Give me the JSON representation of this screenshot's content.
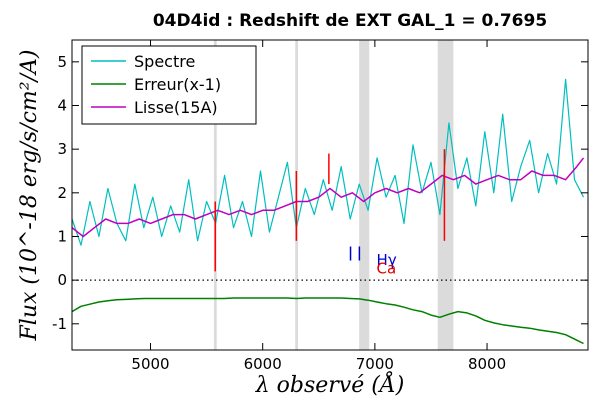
{
  "chart_data": {
    "type": "line",
    "title": "04D4id : Redshift de EXT GAL_1 = 0.7695",
    "xlabel": "λ observé (Å)",
    "ylabel": "Flux (10^-18 erg/s/cm²/A)",
    "xlim": [
      4300,
      8900
    ],
    "ylim": [
      -1.6,
      5.5
    ],
    "xticks": [
      {
        "value": 5000,
        "label": "5000"
      },
      {
        "value": 6000,
        "label": "6000"
      },
      {
        "value": 7000,
        "label": "7000"
      },
      {
        "value": 8000,
        "label": "8000"
      }
    ],
    "yticks": [
      {
        "value": 5,
        "label": "5"
      },
      {
        "value": 4,
        "label": "4"
      },
      {
        "value": 3,
        "label": "3"
      },
      {
        "value": 2,
        "label": "2"
      },
      {
        "value": 1,
        "label": "1"
      },
      {
        "value": 0,
        "label": "0"
      },
      {
        "value": -1,
        "label": "-1"
      }
    ],
    "legend": {
      "placement": "top-left",
      "entries": [
        {
          "label": "Spectre",
          "color": "#00bfbf"
        },
        {
          "label": "Erreur(x-1)",
          "color": "#008000"
        },
        {
          "label": "Lisse(15A)",
          "color": "#bf00bf"
        }
      ]
    },
    "zero_line": {
      "y": 0,
      "style": "dotted"
    },
    "shaded_bands": [
      {
        "x0": 5565,
        "x1": 5590,
        "color": "#cccccc"
      },
      {
        "x0": 6290,
        "x1": 6315,
        "color": "#cccccc"
      },
      {
        "x0": 6860,
        "x1": 6950,
        "color": "#cccccc"
      },
      {
        "x0": 7560,
        "x1": 7700,
        "color": "#cccccc"
      }
    ],
    "red_marks": [
      {
        "x": 5577,
        "y0": 0.2,
        "y1": 1.8
      },
      {
        "x": 6300,
        "y0": 0.9,
        "y1": 2.5
      },
      {
        "x": 7620,
        "y0": 0.9,
        "y1": 3.0
      },
      {
        "x": 6590,
        "y0": 2.2,
        "y1": 2.9
      }
    ],
    "line_markers": [
      {
        "x": 6783,
        "y": 0.45,
        "color": "#0000cc"
      },
      {
        "x": 6862,
        "y": 0.45,
        "color": "#0000cc"
      }
    ],
    "line_labels": [
      {
        "text": "Hγ",
        "x": 7015,
        "y": 0.35,
        "color": "#0000cc"
      },
      {
        "text": "Ca",
        "x": 7015,
        "y": 0.15,
        "color": "#dd0000"
      }
    ],
    "series": [
      {
        "name": "Spectre",
        "color": "#00bfbf",
        "x": [
          4300,
          4380,
          4460,
          4540,
          4620,
          4700,
          4780,
          4860,
          4940,
          5020,
          5100,
          5180,
          5260,
          5340,
          5420,
          5500,
          5580,
          5660,
          5740,
          5820,
          5900,
          5980,
          6060,
          6140,
          6220,
          6300,
          6380,
          6460,
          6540,
          6620,
          6700,
          6780,
          6860,
          6940,
          7020,
          7100,
          7180,
          7260,
          7340,
          7420,
          7500,
          7580,
          7660,
          7740,
          7820,
          7900,
          7980,
          8060,
          8140,
          8220,
          8300,
          8380,
          8460,
          8540,
          8620,
          8700,
          8780,
          8860
        ],
        "y": [
          1.4,
          0.8,
          1.8,
          1.0,
          2.1,
          1.3,
          0.9,
          2.2,
          1.2,
          1.9,
          1.0,
          1.7,
          1.1,
          2.3,
          0.9,
          1.8,
          1.3,
          2.4,
          1.2,
          1.8,
          1.0,
          2.5,
          1.1,
          1.9,
          2.7,
          1.2,
          2.1,
          1.5,
          2.3,
          1.6,
          2.6,
          1.4,
          2.2,
          1.6,
          2.8,
          1.9,
          2.4,
          1.3,
          3.1,
          2.0,
          2.7,
          1.5,
          3.6,
          2.1,
          2.8,
          1.7,
          3.4,
          2.0,
          3.8,
          1.8,
          2.6,
          3.2,
          2.0,
          2.9,
          2.2,
          4.6,
          2.3,
          1.9
        ]
      },
      {
        "name": "Erreur(x-1)",
        "color": "#008000",
        "x": [
          4300,
          4380,
          4460,
          4540,
          4620,
          4700,
          4780,
          4860,
          4940,
          5020,
          5100,
          5180,
          5260,
          5340,
          5420,
          5500,
          5580,
          5660,
          5740,
          5820,
          5900,
          5980,
          6060,
          6140,
          6220,
          6300,
          6380,
          6460,
          6540,
          6620,
          6700,
          6780,
          6860,
          6940,
          7020,
          7100,
          7180,
          7260,
          7340,
          7420,
          7500,
          7580,
          7660,
          7740,
          7820,
          7900,
          7980,
          8060,
          8140,
          8220,
          8300,
          8380,
          8460,
          8540,
          8620,
          8700,
          8780,
          8860
        ],
        "y": [
          -0.72,
          -0.6,
          -0.55,
          -0.5,
          -0.47,
          -0.45,
          -0.44,
          -0.43,
          -0.42,
          -0.42,
          -0.42,
          -0.42,
          -0.42,
          -0.42,
          -0.42,
          -0.42,
          -0.42,
          -0.42,
          -0.41,
          -0.41,
          -0.41,
          -0.41,
          -0.41,
          -0.41,
          -0.41,
          -0.42,
          -0.41,
          -0.41,
          -0.41,
          -0.41,
          -0.41,
          -0.42,
          -0.43,
          -0.46,
          -0.5,
          -0.54,
          -0.57,
          -0.62,
          -0.68,
          -0.72,
          -0.8,
          -0.85,
          -0.78,
          -0.72,
          -0.75,
          -0.82,
          -0.92,
          -0.98,
          -1.02,
          -1.05,
          -1.08,
          -1.1,
          -1.14,
          -1.17,
          -1.2,
          -1.25,
          -1.35,
          -1.45
        ]
      },
      {
        "name": "Lisse(15A)",
        "color": "#bf00bf",
        "x": [
          4300,
          4400,
          4500,
          4600,
          4700,
          4800,
          4900,
          5000,
          5100,
          5200,
          5300,
          5400,
          5500,
          5600,
          5700,
          5800,
          5900,
          6000,
          6100,
          6200,
          6300,
          6400,
          6500,
          6600,
          6700,
          6800,
          6900,
          7000,
          7100,
          7200,
          7300,
          7400,
          7500,
          7600,
          7700,
          7800,
          7900,
          8000,
          8100,
          8200,
          8300,
          8400,
          8500,
          8600,
          8700,
          8800,
          8860
        ],
        "y": [
          1.2,
          1.0,
          1.2,
          1.4,
          1.3,
          1.3,
          1.4,
          1.3,
          1.4,
          1.5,
          1.5,
          1.4,
          1.5,
          1.6,
          1.5,
          1.6,
          1.5,
          1.6,
          1.6,
          1.7,
          1.8,
          1.8,
          1.9,
          2.1,
          1.9,
          2.0,
          1.8,
          2.0,
          2.1,
          2.0,
          2.1,
          2.0,
          2.2,
          2.4,
          2.3,
          2.4,
          2.2,
          2.3,
          2.4,
          2.3,
          2.3,
          2.5,
          2.4,
          2.4,
          2.3,
          2.6,
          2.8
        ]
      }
    ]
  }
}
